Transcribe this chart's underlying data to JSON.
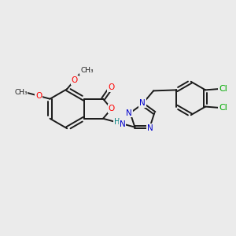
{
  "background_color": "#ebebeb",
  "bond_color": "#1a1a1a",
  "bond_width": 1.4,
  "atom_colors": {
    "O": "#ff0000",
    "N": "#0000cc",
    "Cl": "#00aa00",
    "C": "#1a1a1a",
    "H": "#008080"
  },
  "font_size": 7.5,
  "figsize": [
    3.0,
    3.0
  ],
  "dpi": 100
}
